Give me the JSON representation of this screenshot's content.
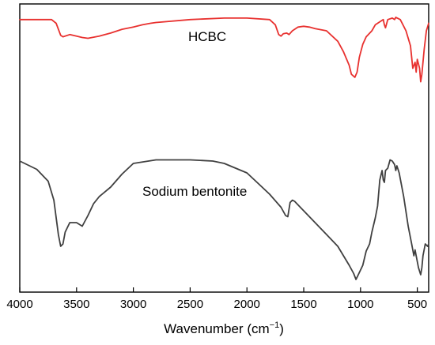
{
  "chart_data": {
    "type": "line",
    "xlabel": "Wavenumber (cm",
    "xlabel_sup": "−1",
    "xlabel_close": ")",
    "xlim": [
      4000,
      400
    ],
    "x_ticks": [
      4000,
      3500,
      3000,
      2500,
      2000,
      1500,
      1000,
      500
    ],
    "y_ticks": [],
    "grid": false,
    "legend": "none",
    "series": [
      {
        "name": "HCBC",
        "color": "#e8312f",
        "x": [
          4000,
          3800,
          3720,
          3680,
          3640,
          3620,
          3560,
          3500,
          3450,
          3400,
          3300,
          3200,
          3100,
          3000,
          2920,
          2850,
          2800,
          2500,
          2200,
          2000,
          1800,
          1750,
          1720,
          1700,
          1680,
          1650,
          1630,
          1600,
          1550,
          1500,
          1450,
          1400,
          1300,
          1200,
          1150,
          1100,
          1080,
          1050,
          1030,
          1010,
          980,
          950,
          900,
          870,
          850,
          800,
          790,
          780,
          760,
          720,
          700,
          690,
          650,
          600,
          560,
          540,
          520,
          510,
          500,
          480,
          470,
          460,
          440,
          420,
          400
        ],
        "y": [
          0.05,
          0.05,
          0.05,
          0.1,
          0.26,
          0.28,
          0.25,
          0.27,
          0.29,
          0.3,
          0.27,
          0.23,
          0.18,
          0.15,
          0.12,
          0.1,
          0.09,
          0.05,
          0.03,
          0.03,
          0.05,
          0.12,
          0.25,
          0.27,
          0.24,
          0.23,
          0.25,
          0.2,
          0.15,
          0.14,
          0.15,
          0.17,
          0.2,
          0.34,
          0.48,
          0.66,
          0.78,
          0.82,
          0.75,
          0.55,
          0.38,
          0.28,
          0.2,
          0.12,
          0.1,
          0.05,
          0.12,
          0.16,
          0.05,
          0.03,
          0.05,
          0.02,
          0.05,
          0.2,
          0.4,
          0.7,
          0.62,
          0.75,
          0.58,
          0.7,
          0.88,
          0.78,
          0.45,
          0.2,
          0.1
        ]
      },
      {
        "name": "Sodium bentonite",
        "color": "#404040",
        "x": [
          4000,
          3850,
          3750,
          3700,
          3660,
          3640,
          3620,
          3600,
          3560,
          3500,
          3450,
          3400,
          3350,
          3300,
          3200,
          3100,
          3000,
          2800,
          2500,
          2300,
          2200,
          2000,
          1900,
          1800,
          1700,
          1660,
          1640,
          1620,
          1600,
          1580,
          1500,
          1400,
          1300,
          1200,
          1150,
          1100,
          1060,
          1040,
          1020,
          980,
          950,
          920,
          900,
          870,
          850,
          830,
          810,
          800,
          790,
          780,
          760,
          740,
          720,
          700,
          690,
          680,
          660,
          620,
          580,
          550,
          530,
          520,
          510,
          490,
          470,
          460,
          450,
          430,
          410,
          400
        ],
        "y": [
          0.0,
          0.07,
          0.17,
          0.33,
          0.62,
          0.72,
          0.7,
          0.6,
          0.52,
          0.52,
          0.55,
          0.46,
          0.36,
          0.3,
          0.22,
          0.11,
          0.02,
          -0.01,
          -0.01,
          0.0,
          0.02,
          0.1,
          0.19,
          0.28,
          0.39,
          0.46,
          0.47,
          0.35,
          0.33,
          0.34,
          0.42,
          0.52,
          0.62,
          0.72,
          0.8,
          0.88,
          0.95,
          1.0,
          0.96,
          0.88,
          0.76,
          0.7,
          0.6,
          0.48,
          0.38,
          0.16,
          0.08,
          0.16,
          0.18,
          0.08,
          0.06,
          -0.01,
          0.0,
          0.03,
          0.08,
          0.04,
          0.1,
          0.3,
          0.55,
          0.7,
          0.8,
          0.75,
          0.8,
          0.9,
          0.96,
          0.9,
          0.8,
          0.7,
          0.72,
          0.7
        ]
      }
    ]
  }
}
